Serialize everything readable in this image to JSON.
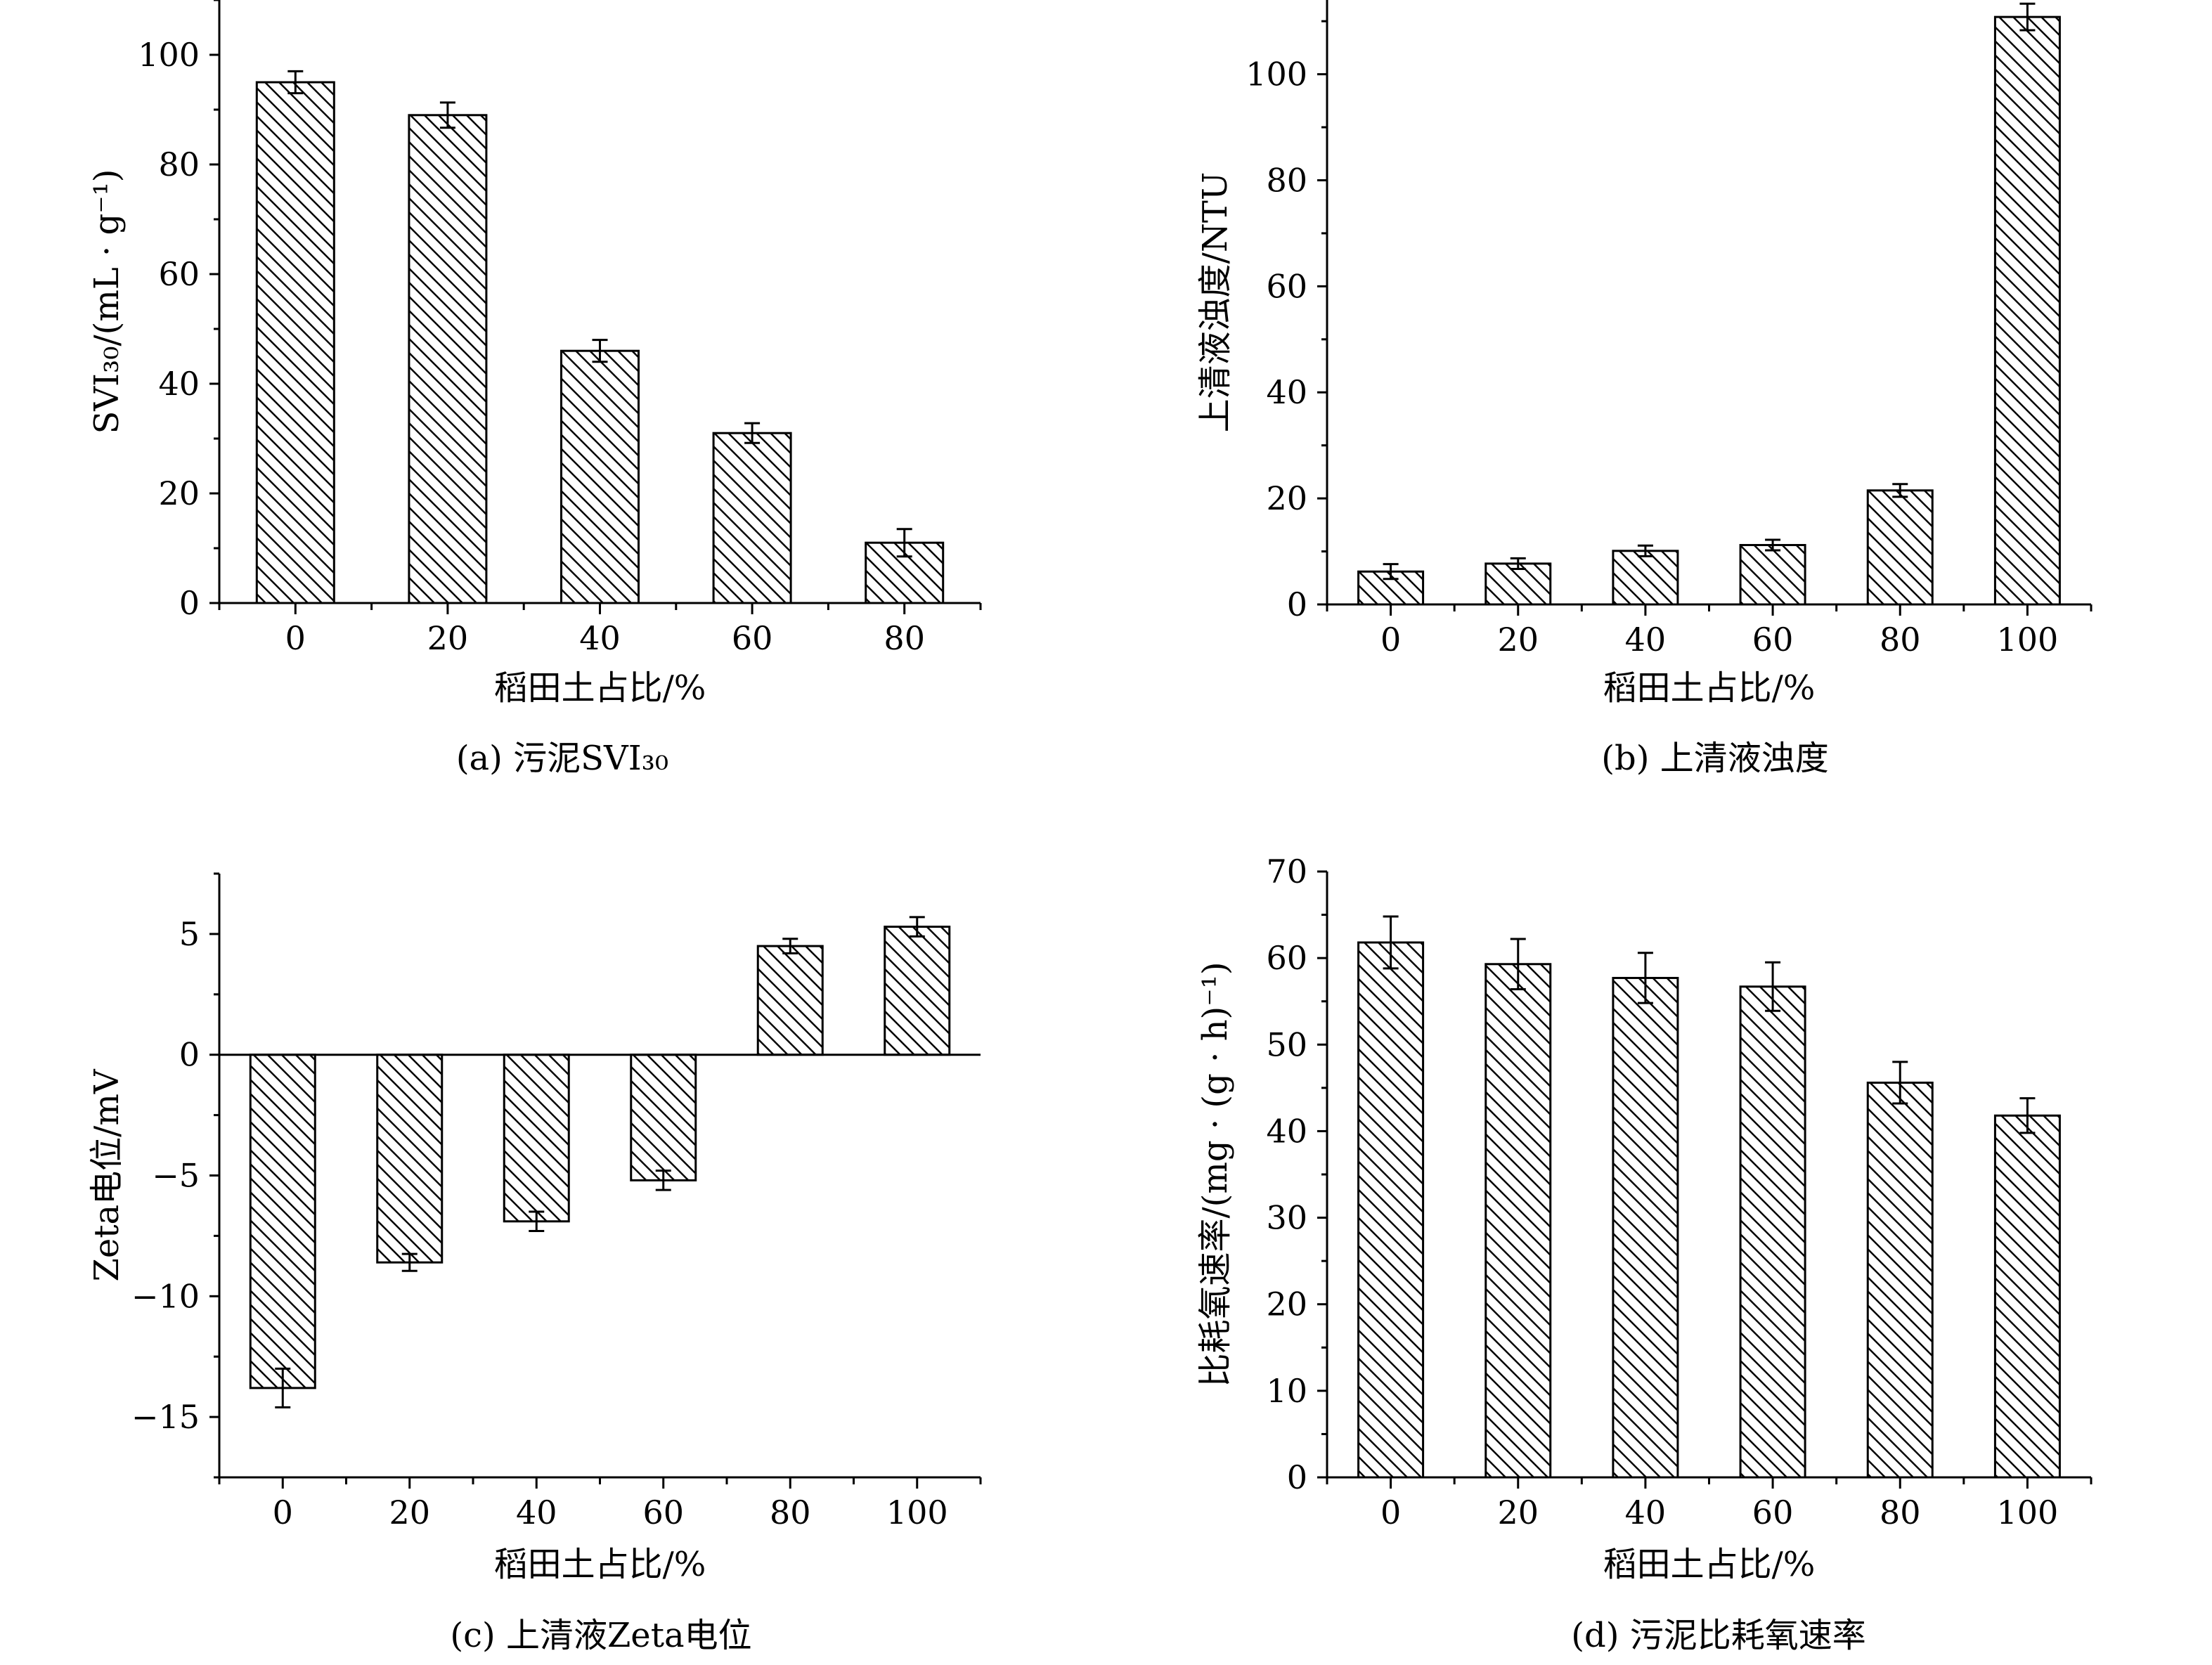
{
  "figure": {
    "panels": [
      {
        "id": "a",
        "caption": "(a) 污泥SVI₃₀"
      },
      {
        "id": "b",
        "caption": "(b) 上清液浊度"
      },
      {
        "id": "c",
        "caption": "(c) 上清液Zeta电位"
      },
      {
        "id": "d",
        "caption": "(d) 污泥比耗氧速率"
      }
    ]
  },
  "chart_data": [
    {
      "type": "bar",
      "title": "(a) 污泥SVI₃₀",
      "xlabel": "稻田土占比/%",
      "ylabel": "SVI₃₀/(mL · g⁻¹)",
      "categories": [
        "0",
        "20",
        "40",
        "60",
        "80"
      ],
      "values": [
        95,
        89,
        46,
        31,
        11
      ],
      "errors": [
        2,
        2.3,
        2,
        1.8,
        2.5
      ],
      "ylim": [
        0,
        110
      ],
      "yticks": [
        0,
        20,
        40,
        60,
        80,
        100
      ],
      "fill": "hatched",
      "grid": false
    },
    {
      "type": "bar",
      "title": "(b) 上清液浊度",
      "xlabel": "稻田土占比/%",
      "ylabel": "上清液浊度/NTU",
      "categories": [
        "0",
        "20",
        "40",
        "60",
        "80",
        "100"
      ],
      "values": [
        6.2,
        7.7,
        10.1,
        11.2,
        21.5,
        110.8
      ],
      "errors": [
        1.4,
        1,
        1,
        1,
        1.2,
        2.5
      ],
      "ylim": [
        0,
        114
      ],
      "yticks": [
        0,
        20,
        40,
        60,
        80,
        100
      ],
      "fill": "hatched",
      "grid": false
    },
    {
      "type": "bar",
      "title": "(c) 上清液Zeta电位",
      "xlabel": "稻田土占比/%",
      "ylabel": "Zeta电位/mV",
      "categories": [
        "0",
        "20",
        "40",
        "60",
        "80",
        "100"
      ],
      "values": [
        -13.8,
        -8.6,
        -6.9,
        -5.2,
        4.5,
        5.3
      ],
      "errors": [
        0.8,
        0.35,
        0.4,
        0.4,
        0.3,
        0.4
      ],
      "ylim": [
        -17.5,
        7.5
      ],
      "yticks": [
        -15,
        -10,
        -5,
        0,
        5
      ],
      "ytick_labels": [
        "−15",
        "−10",
        "−5",
        "0",
        "5"
      ],
      "fill": "hatched",
      "grid": false
    },
    {
      "type": "bar",
      "title": "(d) 污泥比耗氧速率",
      "xlabel": "稻田土占比/%",
      "ylabel": "比耗氧速率/(mg · (g · h)⁻¹)",
      "categories": [
        "0",
        "20",
        "40",
        "60",
        "80",
        "100"
      ],
      "values": [
        61.8,
        59.3,
        57.7,
        56.7,
        45.6,
        41.8
      ],
      "errors": [
        3,
        2.9,
        2.9,
        2.8,
        2.4,
        2
      ],
      "ylim": [
        0,
        70
      ],
      "yticks": [
        0,
        10,
        20,
        30,
        40,
        50,
        60,
        70
      ],
      "fill": "hatched",
      "grid": false
    }
  ]
}
